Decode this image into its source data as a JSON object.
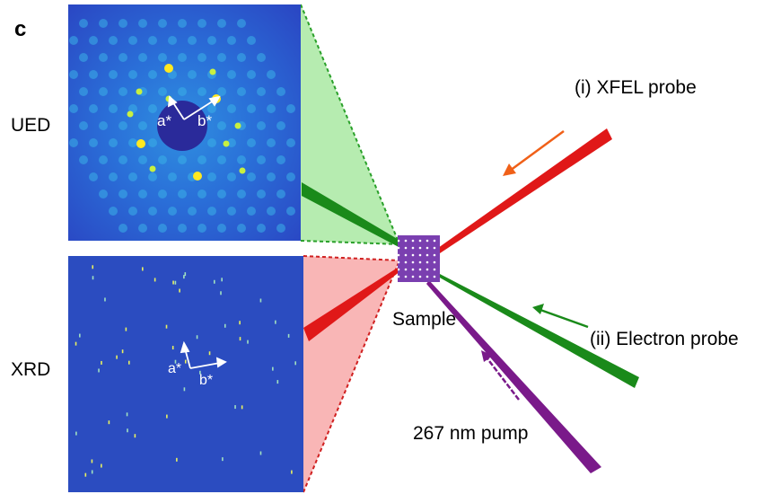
{
  "panel_label": "c",
  "patterns": [
    {
      "label": "UED",
      "axes": [
        "a*",
        "b*"
      ]
    },
    {
      "label": "XRD",
      "axes": [
        "a*",
        "b*"
      ]
    }
  ],
  "beams": [
    {
      "label": "(i) XFEL probe"
    },
    {
      "label": "(ii) Electron probe"
    },
    {
      "label": "267 nm pump"
    }
  ],
  "sample": {
    "label": "Sample"
  }
}
